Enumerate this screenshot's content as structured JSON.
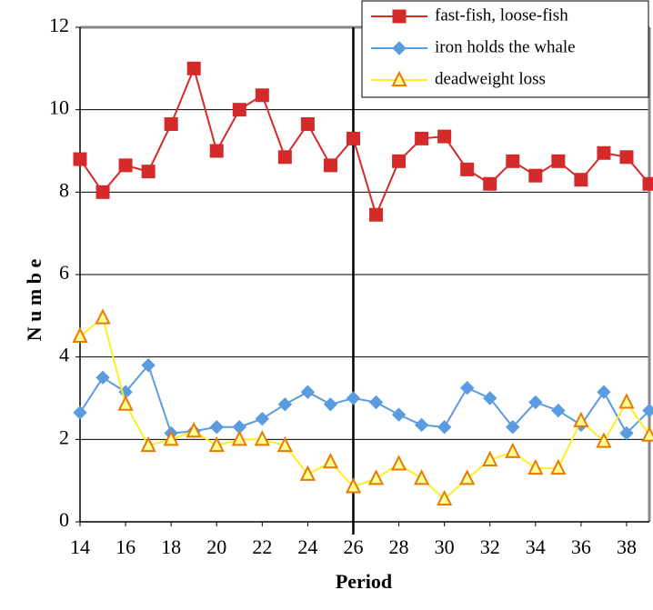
{
  "chart_data": {
    "type": "line",
    "x": [
      14,
      15,
      16,
      17,
      18,
      19,
      20,
      21,
      22,
      23,
      24,
      25,
      26,
      27,
      28,
      29,
      30,
      31,
      32,
      33,
      34,
      35,
      36,
      37,
      38,
      39
    ],
    "series": [
      {
        "name": "fast-fish, loose-fish",
        "color": "#d42a2a",
        "marker": "square",
        "values": [
          8.8,
          8.0,
          8.65,
          8.5,
          9.65,
          11.0,
          9.0,
          10.0,
          10.35,
          8.85,
          9.65,
          8.65,
          9.3,
          7.45,
          8.75,
          9.3,
          9.35,
          8.55,
          8.2,
          8.75,
          8.4,
          8.75,
          8.3,
          8.95,
          8.85,
          8.2
        ]
      },
      {
        "name": "iron holds the whale",
        "color": "#5b9be0",
        "marker": "diamond",
        "values": [
          2.65,
          3.5,
          3.15,
          3.8,
          2.15,
          2.2,
          2.3,
          2.3,
          2.5,
          2.85,
          3.15,
          2.85,
          3.0,
          2.9,
          2.6,
          2.35,
          2.3,
          3.25,
          3.0,
          2.3,
          2.9,
          2.7,
          2.35,
          3.15,
          2.15,
          2.7
        ]
      },
      {
        "name": "deadweight loss",
        "color": "#ffee22",
        "marker": "triangle",
        "marker_edge": "#e87a00",
        "values": [
          4.5,
          4.95,
          2.85,
          1.85,
          2.0,
          2.2,
          1.85,
          2.0,
          2.0,
          1.85,
          1.15,
          1.45,
          0.85,
          1.05,
          1.4,
          1.05,
          0.55,
          1.05,
          1.5,
          1.7,
          1.3,
          1.3,
          2.45,
          1.95,
          2.9,
          2.1
        ]
      }
    ],
    "x_label": "Period",
    "y_label": "N u m b e",
    "xlim": [
      14,
      39
    ],
    "xticks": [
      14,
      16,
      18,
      20,
      22,
      24,
      26,
      28,
      30,
      32,
      34,
      36,
      38
    ],
    "ylim": [
      0,
      12
    ],
    "yticks": [
      0,
      2,
      4,
      6,
      8,
      10,
      12
    ],
    "grid": true,
    "vline": 26,
    "legend": "top-right"
  }
}
